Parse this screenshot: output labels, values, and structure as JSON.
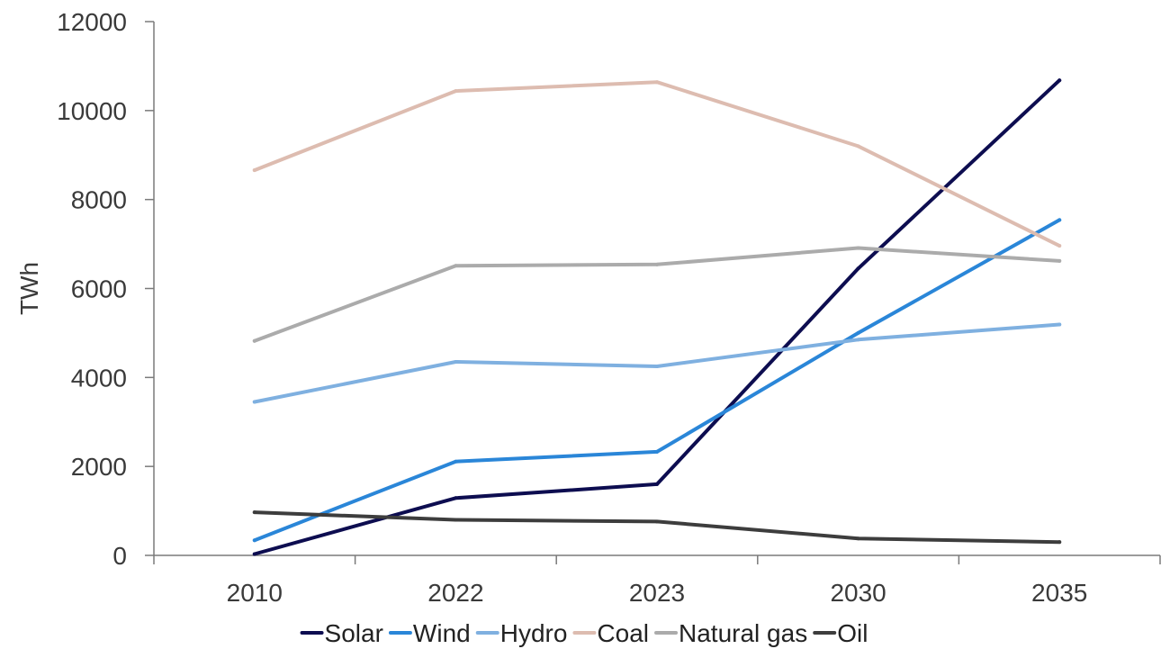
{
  "chart_data": {
    "type": "line",
    "title": "",
    "xlabel": "",
    "ylabel": "TWh",
    "categories": [
      "2010",
      "2022",
      "2023",
      "2030",
      "2035"
    ],
    "ylim": [
      0,
      12000
    ],
    "yticks": [
      0,
      2000,
      4000,
      6000,
      8000,
      10000,
      12000
    ],
    "grid": false,
    "legend_position": "bottom",
    "series": [
      {
        "name": "Solar",
        "color": "#0d0d50",
        "values": [
          30,
          1290,
          1600,
          6450,
          10680
        ]
      },
      {
        "name": "Wind",
        "color": "#2a86d8",
        "values": [
          340,
          2110,
          2330,
          5000,
          7540
        ]
      },
      {
        "name": "Hydro",
        "color": "#7fb0e0",
        "values": [
          3450,
          4350,
          4250,
          4850,
          5190
        ]
      },
      {
        "name": "Coal",
        "color": "#ddbcb0",
        "values": [
          8660,
          10440,
          10640,
          9200,
          6960
        ]
      },
      {
        "name": "Natural gas",
        "color": "#ababab",
        "values": [
          4820,
          6510,
          6540,
          6910,
          6620
        ]
      },
      {
        "name": "Oil",
        "color": "#3d3d3d",
        "values": [
          970,
          800,
          760,
          380,
          300
        ]
      }
    ]
  }
}
